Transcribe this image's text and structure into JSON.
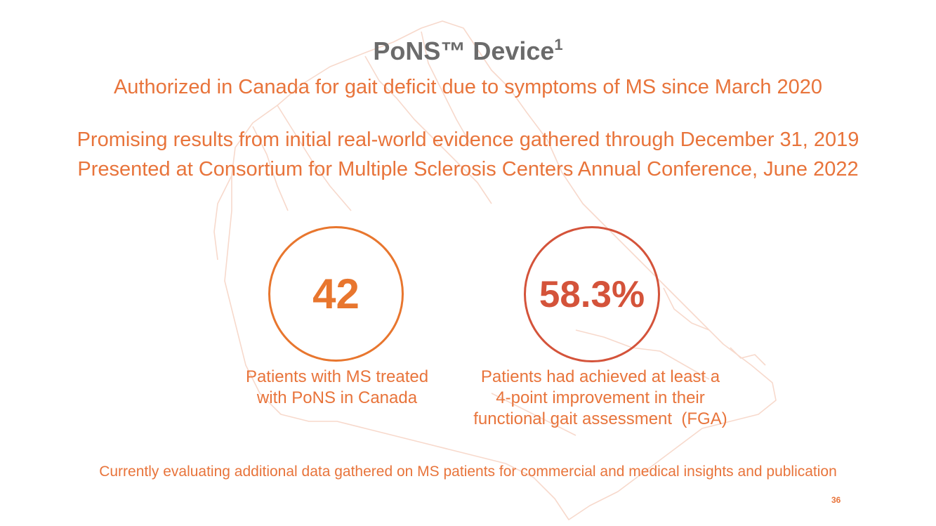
{
  "title": {
    "text": "PoNS™ Device",
    "superscript": "1"
  },
  "subtitle": "Authorized in Canada for gait deficit due to symptoms of MS since March 2020",
  "evidence": {
    "line1": "Promising results from initial real-world evidence gathered through December 31, 2019",
    "line2": "Presented at Consortium for Multiple Sclerosis Centers Annual Conference, June 2022"
  },
  "stats": [
    {
      "value": "42",
      "caption_lines": [
        "Patients with MS treated",
        "with PoNS in Canada"
      ]
    },
    {
      "value": "58.3%",
      "caption_lines": [
        "Patients had achieved at least a",
        "4-point improvement in their",
        "functional gait assessment  (FGA)"
      ]
    }
  ],
  "footer_note": "Currently evaluating additional data gathered on MS patients for commercial and medical insights and publication",
  "page_number": "36",
  "colors": {
    "accent": "#e8743b",
    "circle1": "#e8762e",
    "circle2": "#d4533a",
    "title": "#6b6b6b"
  },
  "background_icon": "canada-map-outline"
}
